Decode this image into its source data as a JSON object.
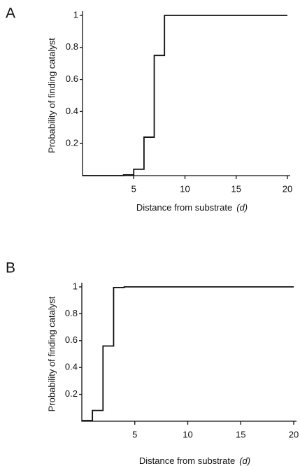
{
  "chart_data": [
    {
      "type": "step",
      "panel_label": "A",
      "x_label": "Distance from substrate",
      "x_label_symbol": "(d)",
      "y_label": "Probability of finding catalyst",
      "color": "#111111",
      "x": [
        0,
        1,
        2,
        3,
        4,
        5,
        6,
        7,
        8,
        9,
        10,
        11,
        12,
        13,
        14,
        15,
        16,
        17,
        18,
        19,
        20
      ],
      "values": [
        0,
        0,
        0,
        0,
        0.005,
        0.04,
        0.24,
        0.75,
        1,
        1,
        1,
        1,
        1,
        1,
        1,
        1,
        1,
        1,
        1,
        1,
        1
      ],
      "xlim": [
        0,
        20
      ],
      "xticks": [
        5,
        10,
        15,
        20
      ],
      "ylim": [
        0,
        1
      ],
      "yticks": [
        0.2,
        0.4,
        0.6,
        0.8,
        1
      ]
    },
    {
      "type": "step",
      "panel_label": "B",
      "x_label": "Distance from substrate",
      "x_label_symbol": "(d)",
      "y_label": "Probability of finding catalyst",
      "color": "#111111",
      "x": [
        0,
        1,
        2,
        3,
        4,
        5,
        6,
        7,
        8,
        9,
        10,
        11,
        12,
        13,
        14,
        15,
        16,
        17,
        18,
        19,
        20
      ],
      "values": [
        0.005,
        0.08,
        0.56,
        0.995,
        1,
        1,
        1,
        1,
        1,
        1,
        1,
        1,
        1,
        1,
        1,
        1,
        1,
        1,
        1,
        1,
        1
      ],
      "xlim": [
        0,
        20
      ],
      "xticks": [
        5,
        10,
        15,
        20
      ],
      "ylim": [
        0,
        1
      ],
      "yticks": [
        0.2,
        0.4,
        0.6,
        0.8,
        1
      ]
    }
  ]
}
